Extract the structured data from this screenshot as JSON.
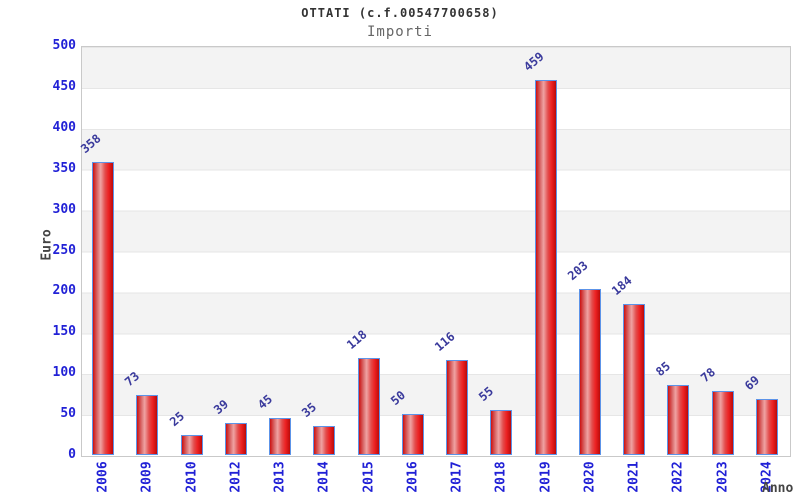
{
  "chart_data": {
    "type": "bar",
    "title": "OTTATI (c.f.00547700658)",
    "subtitle": "Importi",
    "xlabel": "Anno",
    "ylabel": "Euro",
    "categories": [
      "2006",
      "2009",
      "2010",
      "2012",
      "2013",
      "2014",
      "2015",
      "2016",
      "2017",
      "2018",
      "2019",
      "2020",
      "2021",
      "2022",
      "2023",
      "2024"
    ],
    "values": [
      358,
      73,
      25,
      39,
      45,
      35,
      118,
      50,
      116,
      55,
      459,
      203,
      184,
      85,
      78,
      69
    ],
    "ylim": [
      0,
      500
    ],
    "ytick_step": 50,
    "yticks": [
      0,
      50,
      100,
      150,
      200,
      250,
      300,
      350,
      400,
      450,
      500
    ],
    "legend": "none",
    "grid": "alternating horizontal 50-unit bands, gray over white, thin gridlines at band edges",
    "value_labels": "above each bar, rotated ~40deg, blue",
    "x_tick_rotation": -90,
    "colors": {
      "bar_fill_main": "#e11b23",
      "bar_fill_light": "#efa3a3",
      "bar_fill_dark": "#bb0a0a",
      "bar_border": "#5c93e8",
      "tick_label": "#2121d6",
      "value_label": "#3a3a9c",
      "title": "#333333",
      "subtitle": "#666666",
      "axis_label": "#444444",
      "band_fill": "#f3f3f3",
      "grid_line": "#e6e6e6",
      "plot_border": "#c9c9c9",
      "background": "#ffffff"
    }
  }
}
